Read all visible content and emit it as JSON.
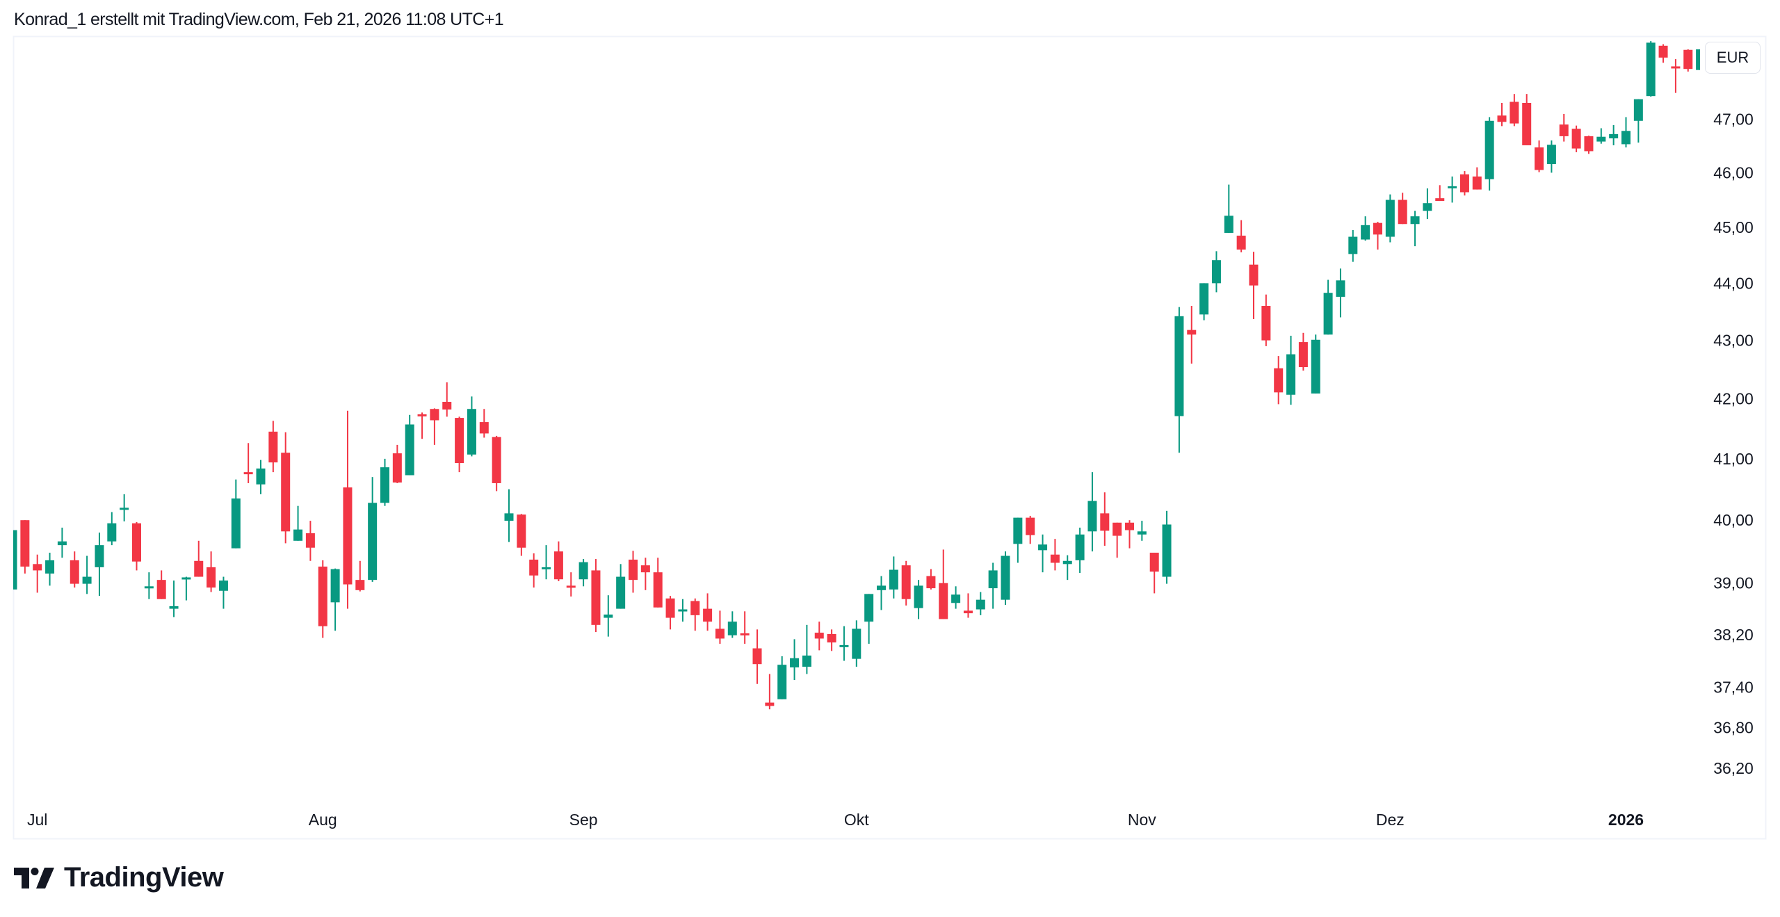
{
  "header": {
    "attribution": "Konrad_1 erstellt mit TradingView.com, Feb 21, 2026 11:08 UTC+1"
  },
  "currency_button": "EUR",
  "logo": {
    "text": "TradingView"
  },
  "colors": {
    "up": "#089981",
    "down": "#F23645",
    "border": "#e0e3eb",
    "text": "#131722"
  },
  "chart_data": {
    "type": "candlestick",
    "title": "",
    "currency": "EUR",
    "scale": "log",
    "ylim": [
      35.7,
      48.7
    ],
    "y_ticks": [
      {
        "value": 47.0,
        "label": "47,00"
      },
      {
        "value": 46.0,
        "label": "46,00"
      },
      {
        "value": 45.0,
        "label": "45,00"
      },
      {
        "value": 44.0,
        "label": "44,00"
      },
      {
        "value": 43.0,
        "label": "43,00"
      },
      {
        "value": 42.0,
        "label": "42,00"
      },
      {
        "value": 41.0,
        "label": "41,00"
      },
      {
        "value": 40.0,
        "label": "40,00"
      },
      {
        "value": 39.0,
        "label": "39,00"
      },
      {
        "value": 38.2,
        "label": "38,20"
      },
      {
        "value": 37.4,
        "label": "37,40"
      },
      {
        "value": 36.8,
        "label": "36,80"
      },
      {
        "value": 36.2,
        "label": "36,20"
      }
    ],
    "x_ticks": [
      {
        "index": 2,
        "label": "Jul",
        "bold": false
      },
      {
        "index": 25,
        "label": "Aug",
        "bold": false
      },
      {
        "index": 46,
        "label": "Sep",
        "bold": false
      },
      {
        "index": 68,
        "label": "Okt",
        "bold": false
      },
      {
        "index": 91,
        "label": "Nov",
        "bold": false
      },
      {
        "index": 111,
        "label": "Dez",
        "bold": false
      },
      {
        "index": 130,
        "label": "2026",
        "bold": true
      }
    ],
    "ohlc_fields": [
      "open",
      "high",
      "low",
      "close"
    ],
    "ohlc": [
      [
        38.9,
        39.84,
        38.9,
        39.84
      ],
      [
        40.0,
        40.0,
        39.15,
        39.26
      ],
      [
        39.3,
        39.45,
        38.85,
        39.2
      ],
      [
        39.15,
        39.48,
        38.96,
        39.36
      ],
      [
        39.6,
        39.88,
        39.4,
        39.66
      ],
      [
        39.36,
        39.5,
        38.93,
        38.99
      ],
      [
        38.99,
        39.43,
        38.83,
        39.1
      ],
      [
        39.25,
        39.8,
        38.8,
        39.6
      ],
      [
        39.66,
        40.13,
        39.6,
        39.95
      ],
      [
        40.18,
        40.42,
        39.98,
        40.2
      ],
      [
        39.95,
        39.97,
        39.2,
        39.34
      ],
      [
        38.93,
        39.17,
        38.75,
        38.95
      ],
      [
        39.05,
        39.2,
        38.75,
        38.75
      ],
      [
        38.6,
        39.04,
        38.47,
        38.64
      ],
      [
        39.07,
        39.1,
        38.73,
        39.09
      ],
      [
        39.35,
        39.67,
        39.1,
        39.1
      ],
      [
        39.25,
        39.5,
        38.86,
        38.93
      ],
      [
        38.88,
        39.1,
        38.6,
        39.04
      ],
      [
        39.55,
        40.66,
        39.55,
        40.35
      ],
      [
        40.78,
        41.26,
        40.6,
        40.75
      ],
      [
        40.58,
        40.98,
        40.42,
        40.84
      ],
      [
        41.45,
        41.63,
        40.78,
        40.94
      ],
      [
        41.1,
        41.44,
        39.63,
        39.82
      ],
      [
        39.67,
        40.23,
        39.67,
        39.85
      ],
      [
        39.79,
        39.99,
        39.35,
        39.56
      ],
      [
        39.26,
        39.36,
        38.15,
        38.33
      ],
      [
        38.7,
        39.23,
        38.26,
        39.22
      ],
      [
        40.53,
        41.8,
        38.6,
        38.98
      ],
      [
        39.05,
        39.35,
        38.87,
        38.89
      ],
      [
        39.05,
        40.7,
        39.02,
        40.28
      ],
      [
        40.28,
        41.0,
        40.23,
        40.86
      ],
      [
        41.09,
        41.23,
        40.6,
        40.61
      ],
      [
        40.73,
        41.73,
        40.73,
        41.57
      ],
      [
        41.74,
        41.77,
        41.33,
        41.73
      ],
      [
        41.83,
        41.84,
        41.23,
        41.64
      ],
      [
        41.95,
        42.28,
        41.7,
        41.82
      ],
      [
        41.68,
        41.7,
        40.78,
        40.93
      ],
      [
        41.07,
        42.04,
        41.04,
        41.83
      ],
      [
        41.61,
        41.83,
        41.35,
        41.42
      ],
      [
        41.36,
        41.38,
        40.47,
        40.6
      ],
      [
        39.99,
        40.5,
        39.65,
        40.11
      ],
      [
        40.09,
        40.1,
        39.43,
        39.56
      ],
      [
        39.37,
        39.47,
        38.93,
        39.12
      ],
      [
        39.22,
        39.6,
        39.06,
        39.25
      ],
      [
        39.5,
        39.66,
        39.03,
        39.06
      ],
      [
        38.96,
        39.17,
        38.79,
        38.93
      ],
      [
        39.06,
        39.38,
        38.95,
        39.33
      ],
      [
        39.2,
        39.38,
        38.24,
        38.35
      ],
      [
        38.46,
        38.81,
        38.17,
        38.51
      ],
      [
        38.6,
        39.3,
        38.6,
        39.1
      ],
      [
        39.37,
        39.51,
        38.85,
        39.05
      ],
      [
        39.28,
        39.4,
        38.89,
        39.17
      ],
      [
        39.17,
        39.4,
        38.62,
        38.62
      ],
      [
        38.76,
        38.8,
        38.28,
        38.46
      ],
      [
        38.57,
        38.75,
        38.4,
        38.59
      ],
      [
        38.72,
        38.76,
        38.26,
        38.5
      ],
      [
        38.6,
        38.84,
        38.26,
        38.4
      ],
      [
        38.29,
        38.57,
        38.06,
        38.14
      ],
      [
        38.19,
        38.56,
        38.15,
        38.4
      ],
      [
        38.22,
        38.56,
        38.06,
        38.19
      ],
      [
        37.99,
        38.28,
        37.45,
        37.75
      ],
      [
        37.17,
        37.6,
        37.07,
        37.12
      ],
      [
        37.22,
        37.87,
        37.22,
        37.74
      ],
      [
        37.7,
        38.13,
        37.51,
        37.84
      ],
      [
        37.71,
        38.35,
        37.6,
        37.88
      ],
      [
        38.23,
        38.4,
        37.96,
        38.14
      ],
      [
        38.21,
        38.28,
        37.95,
        38.08
      ],
      [
        38.02,
        38.33,
        37.8,
        38.04
      ],
      [
        37.83,
        38.42,
        37.71,
        38.29
      ],
      [
        38.4,
        38.83,
        38.06,
        38.83
      ],
      [
        38.89,
        39.11,
        38.58,
        38.96
      ],
      [
        38.9,
        39.42,
        38.76,
        39.21
      ],
      [
        39.28,
        39.35,
        38.65,
        38.75
      ],
      [
        38.61,
        39.05,
        38.44,
        38.96
      ],
      [
        39.11,
        39.22,
        38.9,
        38.92
      ],
      [
        39.0,
        39.53,
        38.44,
        38.44
      ],
      [
        38.69,
        38.95,
        38.6,
        38.82
      ],
      [
        38.57,
        38.84,
        38.46,
        38.53
      ],
      [
        38.59,
        38.86,
        38.5,
        38.74
      ],
      [
        38.92,
        39.32,
        38.6,
        39.2
      ],
      [
        38.74,
        39.5,
        38.66,
        39.43
      ],
      [
        39.62,
        40.04,
        39.32,
        40.04
      ],
      [
        40.04,
        40.07,
        39.62,
        39.76
      ],
      [
        39.52,
        39.77,
        39.17,
        39.61
      ],
      [
        39.45,
        39.7,
        39.2,
        39.32
      ],
      [
        39.3,
        39.44,
        39.05,
        39.35
      ],
      [
        39.36,
        39.88,
        39.16,
        39.77
      ],
      [
        39.82,
        40.78,
        39.5,
        40.31
      ],
      [
        40.11,
        40.45,
        39.59,
        39.83
      ],
      [
        39.96,
        39.96,
        39.4,
        39.75
      ],
      [
        39.96,
        40.0,
        39.55,
        39.84
      ],
      [
        39.77,
        39.99,
        39.67,
        39.82
      ],
      [
        39.48,
        39.48,
        38.84,
        39.18
      ],
      [
        39.1,
        40.15,
        38.99,
        39.93
      ],
      [
        41.71,
        43.58,
        41.1,
        43.42
      ],
      [
        43.18,
        43.6,
        42.6,
        43.1
      ],
      [
        43.45,
        44.0,
        43.35,
        44.0
      ],
      [
        44.0,
        44.57,
        43.84,
        44.41
      ],
      [
        44.9,
        45.78,
        44.9,
        45.21
      ],
      [
        44.85,
        45.13,
        44.55,
        44.6
      ],
      [
        44.33,
        44.56,
        43.37,
        43.96
      ],
      [
        43.6,
        43.8,
        42.9,
        43.0
      ],
      [
        42.52,
        42.73,
        41.91,
        42.11
      ],
      [
        42.07,
        43.08,
        41.9,
        42.76
      ],
      [
        42.97,
        43.13,
        42.48,
        42.54
      ],
      [
        42.09,
        43.1,
        42.09,
        43.01
      ],
      [
        43.1,
        44.06,
        43.1,
        43.83
      ],
      [
        43.76,
        44.26,
        43.4,
        44.05
      ],
      [
        44.52,
        44.95,
        44.38,
        44.83
      ],
      [
        44.78,
        45.2,
        44.76,
        45.04
      ],
      [
        45.08,
        45.1,
        44.6,
        44.87
      ],
      [
        44.83,
        45.6,
        44.73,
        45.5
      ],
      [
        45.5,
        45.63,
        45.06,
        45.06
      ],
      [
        45.06,
        45.3,
        44.66,
        45.2
      ],
      [
        45.3,
        45.71,
        45.15,
        45.44
      ],
      [
        45.53,
        45.77,
        45.48,
        45.48
      ],
      [
        45.72,
        45.93,
        45.45,
        45.75
      ],
      [
        45.97,
        46.03,
        45.58,
        45.64
      ],
      [
        45.93,
        46.1,
        45.69,
        45.69
      ],
      [
        45.88,
        47.04,
        45.67,
        46.97
      ],
      [
        47.07,
        47.31,
        46.87,
        46.95
      ],
      [
        47.33,
        47.48,
        46.87,
        46.92
      ],
      [
        47.31,
        47.48,
        46.51,
        46.51
      ],
      [
        46.47,
        46.6,
        46.01,
        46.05
      ],
      [
        46.16,
        46.6,
        46.0,
        46.52
      ],
      [
        46.9,
        47.1,
        46.58,
        46.68
      ],
      [
        46.82,
        46.88,
        46.38,
        46.45
      ],
      [
        46.68,
        46.69,
        46.35,
        46.4
      ],
      [
        46.58,
        46.83,
        46.54,
        46.67
      ],
      [
        46.64,
        46.89,
        46.51,
        46.72
      ],
      [
        46.53,
        47.04,
        46.47,
        46.78
      ],
      [
        46.97,
        47.38,
        46.56,
        47.38
      ],
      [
        47.44,
        48.5,
        47.43,
        48.47
      ],
      [
        48.41,
        48.44,
        48.08,
        48.18
      ],
      [
        48.01,
        48.15,
        47.5,
        47.98
      ],
      [
        48.33,
        48.34,
        47.91,
        47.96
      ],
      [
        47.94,
        48.34,
        47.94,
        48.34
      ]
    ]
  }
}
